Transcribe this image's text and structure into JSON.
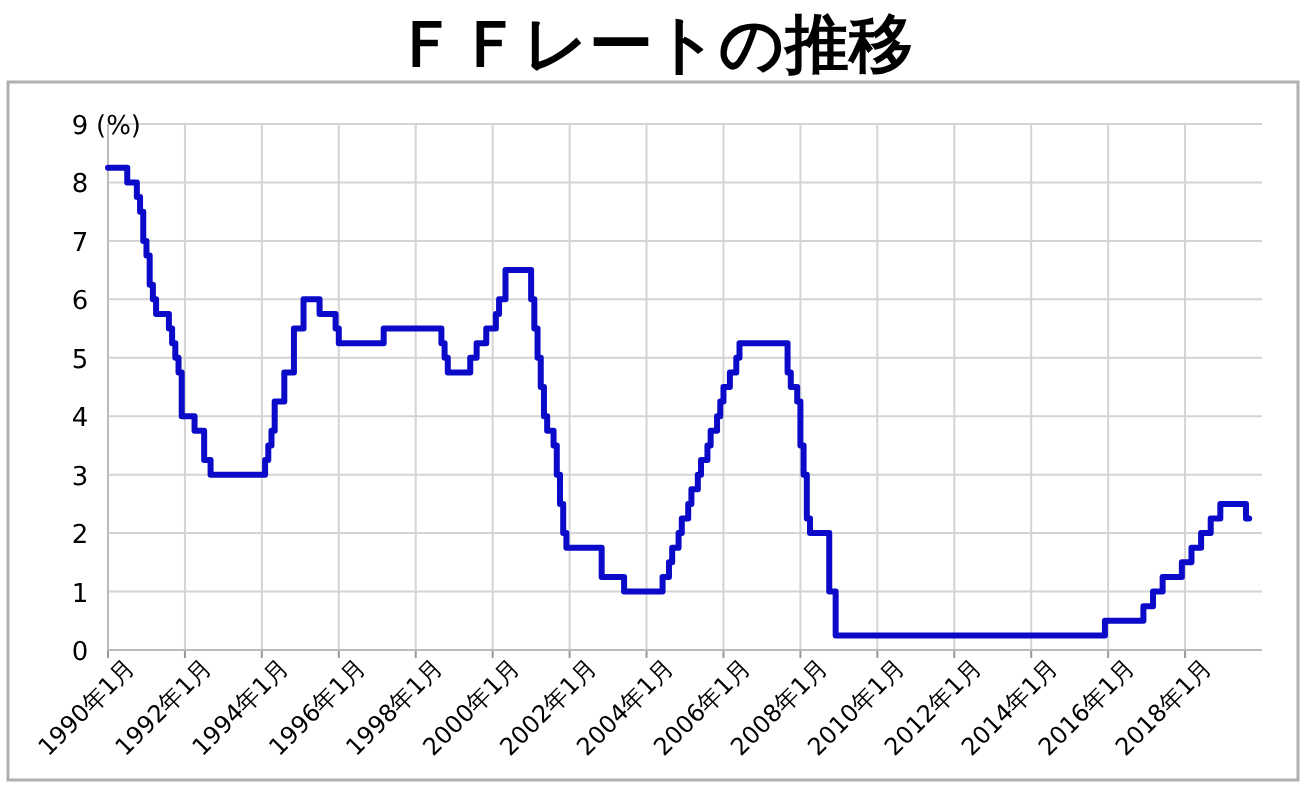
{
  "chart_data": {
    "type": "step",
    "title": "ＦＦレートの推移",
    "ylabel": "(%)",
    "x": [
      "1990-01",
      "1990-07",
      "1990-10",
      "1990-11",
      "1990-12",
      "1991-01",
      "1991-02",
      "1991-03",
      "1991-04",
      "1991-08",
      "1991-09",
      "1991-10",
      "1991-11",
      "1991-12",
      "1992-04",
      "1992-07",
      "1992-09",
      "1994-02",
      "1994-03",
      "1994-04",
      "1994-05",
      "1994-08",
      "1994-11",
      "1995-02",
      "1995-07",
      "1995-12",
      "1996-01",
      "1997-03",
      "1998-09",
      "1998-10",
      "1998-11",
      "1999-06",
      "1999-08",
      "1999-11",
      "2000-02",
      "2000-03",
      "2000-05",
      "2001-01",
      "2001-02",
      "2001-03",
      "2001-04",
      "2001-05",
      "2001-06",
      "2001-08",
      "2001-09",
      "2001-10",
      "2001-11",
      "2001-12",
      "2002-11",
      "2003-06",
      "2004-06",
      "2004-08",
      "2004-09",
      "2004-11",
      "2004-12",
      "2005-02",
      "2005-03",
      "2005-05",
      "2005-06",
      "2005-08",
      "2005-09",
      "2005-11",
      "2005-12",
      "2006-01",
      "2006-03",
      "2006-05",
      "2006-06",
      "2007-09",
      "2007-10",
      "2007-12",
      "2008-01",
      "2008-02",
      "2008-03",
      "2008-04",
      "2008-10",
      "2008-11",
      "2008-12",
      "2015-12",
      "2016-12",
      "2017-03",
      "2017-06",
      "2017-12",
      "2018-03",
      "2018-06",
      "2018-09",
      "2018-12",
      "2019-08",
      "2019-09"
    ],
    "series": [
      {
        "color": "#0a0ac8",
        "values": [
          8.25,
          8.0,
          7.75,
          7.5,
          7.0,
          6.75,
          6.25,
          6.0,
          5.75,
          5.5,
          5.25,
          5.0,
          4.75,
          4.0,
          3.75,
          3.25,
          3.0,
          3.25,
          3.5,
          3.75,
          4.25,
          4.75,
          5.5,
          6.0,
          5.75,
          5.5,
          5.25,
          5.5,
          5.25,
          5.0,
          4.75,
          5.0,
          5.25,
          5.5,
          5.75,
          6.0,
          6.5,
          6.0,
          5.5,
          5.0,
          4.5,
          4.0,
          3.75,
          3.5,
          3.0,
          2.5,
          2.0,
          1.75,
          1.25,
          1.0,
          1.25,
          1.5,
          1.75,
          2.0,
          2.25,
          2.5,
          2.75,
          3.0,
          3.25,
          3.5,
          3.75,
          4.0,
          4.25,
          4.5,
          4.75,
          5.0,
          5.25,
          4.75,
          4.5,
          4.25,
          3.5,
          3.0,
          2.25,
          2.0,
          1.0,
          1.0,
          0.25,
          0.5,
          0.75,
          1.0,
          1.25,
          1.5,
          1.75,
          2.0,
          2.25,
          2.5,
          2.25,
          2.25
        ]
      }
    ],
    "xlim": [
      "1990-01",
      "2020-01"
    ],
    "xticks": [
      {
        "value": "1990-01",
        "label": "1990年1月"
      },
      {
        "value": "1992-01",
        "label": "1992年1月"
      },
      {
        "value": "1994-01",
        "label": "1994年1月"
      },
      {
        "value": "1996-01",
        "label": "1996年1月"
      },
      {
        "value": "1998-01",
        "label": "1998年1月"
      },
      {
        "value": "2000-01",
        "label": "2000年1月"
      },
      {
        "value": "2002-01",
        "label": "2002年1月"
      },
      {
        "value": "2004-01",
        "label": "2004年1月"
      },
      {
        "value": "2006-01",
        "label": "2006年1月"
      },
      {
        "value": "2008-01",
        "label": "2008年1月"
      },
      {
        "value": "2010-01",
        "label": "2010年1月"
      },
      {
        "value": "2012-01",
        "label": "2012年1月"
      },
      {
        "value": "2014-01",
        "label": "2014年1月"
      },
      {
        "value": "2016-01",
        "label": "2016年1月"
      },
      {
        "value": "2018-01",
        "label": "2018年1月"
      }
    ],
    "ylim": [
      0,
      9
    ],
    "yticks": [
      0,
      1,
      2,
      3,
      4,
      5,
      6,
      7,
      8,
      9
    ],
    "grid": true,
    "line_style": "solid"
  }
}
